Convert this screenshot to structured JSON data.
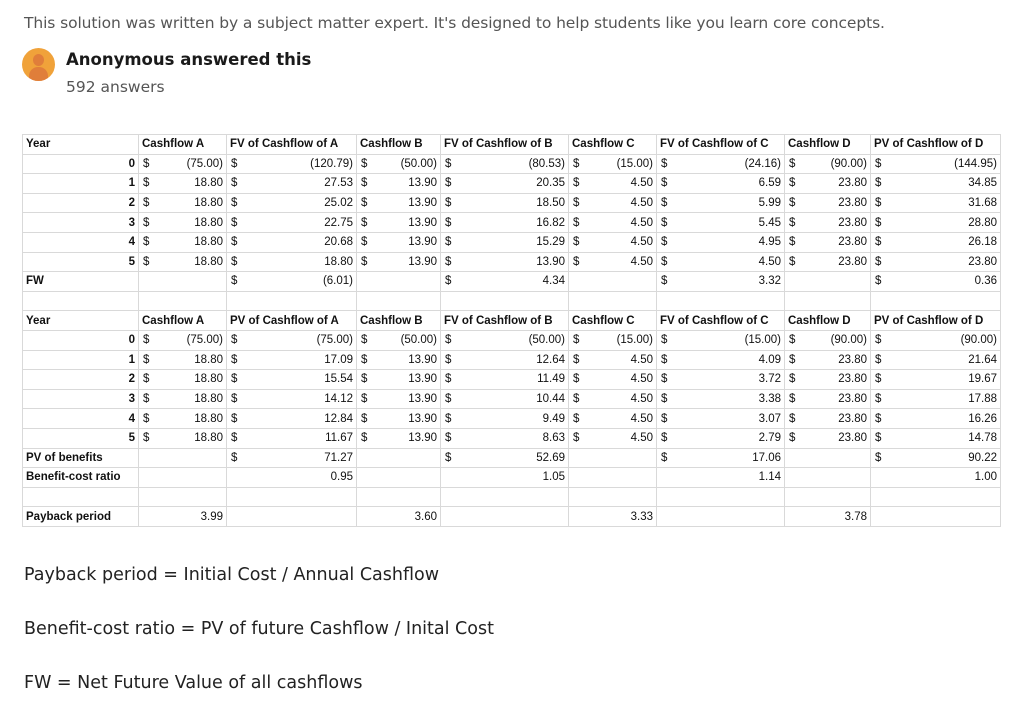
{
  "intro": "This solution was written by a subject matter expert. It's designed to help students like you learn core concepts.",
  "author": {
    "name": "Anonymous answered this",
    "count": "592 answers",
    "avatar_color": "#f0a23a"
  },
  "fw_table": {
    "headers": [
      "Year",
      "Cashflow A",
      "FV of Cashflow of A",
      "Cashflow B",
      "FV of Cashflow of B",
      "Cashflow C",
      "FV of Cashflow of C",
      "Cashflow D",
      "PV of Cashflow of D"
    ],
    "rows": [
      {
        "year": "0",
        "cfA": "(75.00)",
        "fvA": "(120.79)",
        "cfB": "(50.00)",
        "fvB": "(80.53)",
        "cfC": "(15.00)",
        "fvC": "(24.16)",
        "cfD": "(90.00)",
        "pvD": "(144.95)"
      },
      {
        "year": "1",
        "cfA": "18.80",
        "fvA": "27.53",
        "cfB": "13.90",
        "fvB": "20.35",
        "cfC": "4.50",
        "fvC": "6.59",
        "cfD": "23.80",
        "pvD": "34.85"
      },
      {
        "year": "2",
        "cfA": "18.80",
        "fvA": "25.02",
        "cfB": "13.90",
        "fvB": "18.50",
        "cfC": "4.50",
        "fvC": "5.99",
        "cfD": "23.80",
        "pvD": "31.68"
      },
      {
        "year": "3",
        "cfA": "18.80",
        "fvA": "22.75",
        "cfB": "13.90",
        "fvB": "16.82",
        "cfC": "4.50",
        "fvC": "5.45",
        "cfD": "23.80",
        "pvD": "28.80"
      },
      {
        "year": "4",
        "cfA": "18.80",
        "fvA": "20.68",
        "cfB": "13.90",
        "fvB": "15.29",
        "cfC": "4.50",
        "fvC": "4.95",
        "cfD": "23.80",
        "pvD": "26.18"
      },
      {
        "year": "5",
        "cfA": "18.80",
        "fvA": "18.80",
        "cfB": "13.90",
        "fvB": "13.90",
        "cfC": "4.50",
        "fvC": "4.50",
        "cfD": "23.80",
        "pvD": "23.80"
      }
    ],
    "fw": {
      "label": "FW",
      "A": "(6.01)",
      "B": "4.34",
      "C": "3.32",
      "D": "0.36"
    }
  },
  "pv_table": {
    "headers": [
      "Year",
      "Cashflow A",
      "PV of Cashflow of A",
      "Cashflow B",
      "FV of Cashflow of B",
      "Cashflow C",
      "FV of Cashflow of C",
      "Cashflow D",
      "PV of Cashflow of D"
    ],
    "rows": [
      {
        "year": "0",
        "cfA": "(75.00)",
        "pvA": "(75.00)",
        "cfB": "(50.00)",
        "pvB": "(50.00)",
        "cfC": "(15.00)",
        "pvC": "(15.00)",
        "cfD": "(90.00)",
        "pvD": "(90.00)"
      },
      {
        "year": "1",
        "cfA": "18.80",
        "pvA": "17.09",
        "cfB": "13.90",
        "pvB": "12.64",
        "cfC": "4.50",
        "pvC": "4.09",
        "cfD": "23.80",
        "pvD": "21.64"
      },
      {
        "year": "2",
        "cfA": "18.80",
        "pvA": "15.54",
        "cfB": "13.90",
        "pvB": "11.49",
        "cfC": "4.50",
        "pvC": "3.72",
        "cfD": "23.80",
        "pvD": "19.67"
      },
      {
        "year": "3",
        "cfA": "18.80",
        "pvA": "14.12",
        "cfB": "13.90",
        "pvB": "10.44",
        "cfC": "4.50",
        "pvC": "3.38",
        "cfD": "23.80",
        "pvD": "17.88"
      },
      {
        "year": "4",
        "cfA": "18.80",
        "pvA": "12.84",
        "cfB": "13.90",
        "pvB": "9.49",
        "cfC": "4.50",
        "pvC": "3.07",
        "cfD": "23.80",
        "pvD": "16.26"
      },
      {
        "year": "5",
        "cfA": "18.80",
        "pvA": "11.67",
        "cfB": "13.90",
        "pvB": "8.63",
        "cfC": "4.50",
        "pvC": "2.79",
        "cfD": "23.80",
        "pvD": "14.78"
      }
    ],
    "pv_benefits": {
      "label": "PV of benefits",
      "A": "71.27",
      "B": "52.69",
      "C": "17.06",
      "D": "90.22"
    },
    "bcr": {
      "label": "Benefit-cost ratio",
      "A": "0.95",
      "B": "1.05",
      "C": "1.14",
      "D": "1.00"
    },
    "payback": {
      "label": "Payback period",
      "A": "3.99",
      "B": "3.60",
      "C": "3.33",
      "D": "3.78"
    }
  },
  "currency_symbol": "$",
  "formulas": [
    "Payback period = Initial Cost / Annual Cashflow",
    "Benefit-cost ratio = PV of future Cashflow / Inital Cost",
    "FW = Net Future Value of all cashflows"
  ]
}
